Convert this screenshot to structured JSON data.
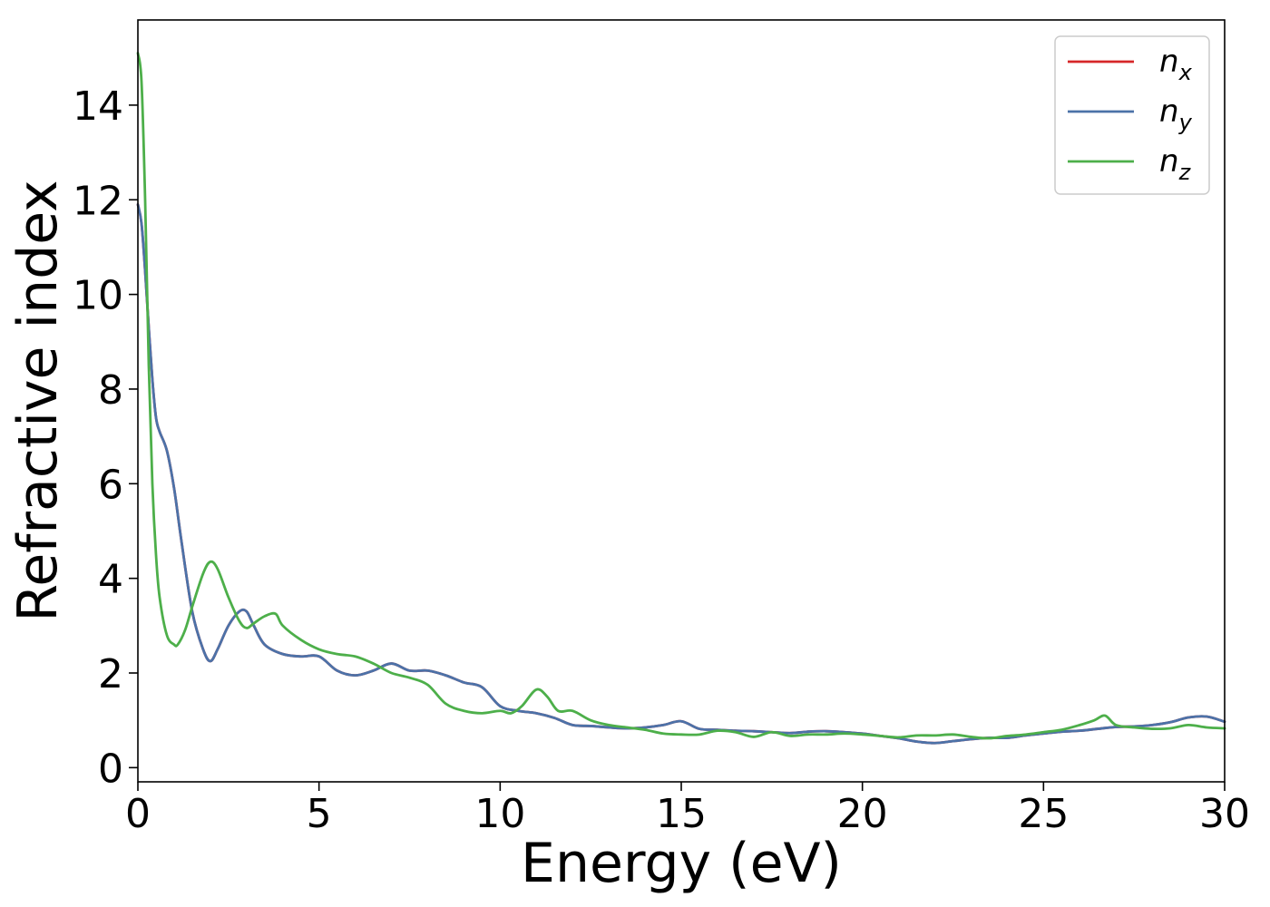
{
  "chart_data": {
    "type": "line",
    "title": "",
    "xlabel": "Energy (eV)",
    "ylabel": "Refractive index",
    "xlim": [
      0,
      30
    ],
    "ylim": [
      -0.3,
      15.8
    ],
    "xticks": [
      0,
      5,
      10,
      15,
      20,
      25,
      30
    ],
    "yticks": [
      0,
      2,
      4,
      6,
      8,
      10,
      12,
      14
    ],
    "grid": false,
    "legend_position": "top-right",
    "series": [
      {
        "name": "n",
        "subscript": "x",
        "color": "#d62728",
        "x": [
          0,
          0.1,
          0.2,
          0.3,
          0.4,
          0.5,
          0.6,
          0.8,
          1.0,
          1.2,
          1.5,
          1.8,
          2.0,
          2.2,
          2.5,
          2.8,
          3.0,
          3.2,
          3.5,
          4.0,
          4.5,
          5.0,
          5.5,
          6.0,
          6.5,
          7.0,
          7.5,
          8.0,
          8.5,
          9.0,
          9.5,
          10.0,
          10.5,
          11.0,
          11.5,
          12.0,
          12.5,
          13.0,
          13.5,
          14.0,
          14.5,
          15.0,
          15.5,
          16.0,
          16.5,
          17.0,
          17.5,
          18.0,
          18.5,
          19.0,
          19.5,
          20.0,
          20.5,
          21.0,
          21.5,
          22.0,
          22.5,
          23.0,
          23.5,
          24.0,
          24.5,
          25.0,
          25.5,
          26.0,
          26.5,
          27.0,
          27.5,
          28.0,
          28.5,
          29.0,
          29.5,
          30.0
        ],
        "values": [
          11.9,
          11.5,
          10.5,
          9.3,
          8.2,
          7.4,
          7.1,
          6.7,
          5.9,
          4.8,
          3.3,
          2.5,
          2.25,
          2.5,
          3.0,
          3.3,
          3.3,
          3.0,
          2.6,
          2.4,
          2.35,
          2.35,
          2.05,
          1.95,
          2.05,
          2.2,
          2.05,
          2.05,
          1.95,
          1.8,
          1.7,
          1.3,
          1.2,
          1.15,
          1.05,
          0.9,
          0.88,
          0.85,
          0.83,
          0.85,
          0.9,
          0.98,
          0.82,
          0.8,
          0.78,
          0.77,
          0.75,
          0.73,
          0.76,
          0.77,
          0.75,
          0.72,
          0.67,
          0.62,
          0.55,
          0.52,
          0.56,
          0.6,
          0.63,
          0.63,
          0.68,
          0.72,
          0.76,
          0.78,
          0.82,
          0.86,
          0.87,
          0.9,
          0.96,
          1.06,
          1.08,
          0.97
        ]
      },
      {
        "name": "n",
        "subscript": "y",
        "color": "#4c72a8",
        "x": [
          0,
          0.1,
          0.2,
          0.3,
          0.4,
          0.5,
          0.6,
          0.8,
          1.0,
          1.2,
          1.5,
          1.8,
          2.0,
          2.2,
          2.5,
          2.8,
          3.0,
          3.2,
          3.5,
          4.0,
          4.5,
          5.0,
          5.5,
          6.0,
          6.5,
          7.0,
          7.5,
          8.0,
          8.5,
          9.0,
          9.5,
          10.0,
          10.5,
          11.0,
          11.5,
          12.0,
          12.5,
          13.0,
          13.5,
          14.0,
          14.5,
          15.0,
          15.5,
          16.0,
          16.5,
          17.0,
          17.5,
          18.0,
          18.5,
          19.0,
          19.5,
          20.0,
          20.5,
          21.0,
          21.5,
          22.0,
          22.5,
          23.0,
          23.5,
          24.0,
          24.5,
          25.0,
          25.5,
          26.0,
          26.5,
          27.0,
          27.5,
          28.0,
          28.5,
          29.0,
          29.5,
          30.0
        ],
        "values": [
          11.9,
          11.5,
          10.5,
          9.3,
          8.2,
          7.4,
          7.1,
          6.7,
          5.9,
          4.8,
          3.3,
          2.5,
          2.25,
          2.5,
          3.0,
          3.3,
          3.3,
          3.0,
          2.6,
          2.4,
          2.35,
          2.35,
          2.05,
          1.95,
          2.05,
          2.2,
          2.05,
          2.05,
          1.95,
          1.8,
          1.7,
          1.3,
          1.2,
          1.15,
          1.05,
          0.9,
          0.88,
          0.85,
          0.83,
          0.85,
          0.9,
          0.98,
          0.82,
          0.8,
          0.78,
          0.77,
          0.75,
          0.73,
          0.76,
          0.77,
          0.75,
          0.72,
          0.67,
          0.62,
          0.55,
          0.52,
          0.56,
          0.6,
          0.63,
          0.63,
          0.68,
          0.72,
          0.76,
          0.78,
          0.82,
          0.86,
          0.87,
          0.9,
          0.96,
          1.06,
          1.08,
          0.97
        ]
      },
      {
        "name": "n",
        "subscript": "z",
        "color": "#4daf4a",
        "x": [
          0,
          0.1,
          0.2,
          0.3,
          0.4,
          0.5,
          0.6,
          0.8,
          1.0,
          1.1,
          1.3,
          1.5,
          1.8,
          2.0,
          2.2,
          2.5,
          2.8,
          3.0,
          3.2,
          3.5,
          3.8,
          4.0,
          4.5,
          5.0,
          5.5,
          6.0,
          6.5,
          7.0,
          7.5,
          8.0,
          8.5,
          9.0,
          9.5,
          10.0,
          10.3,
          10.6,
          11.0,
          11.3,
          11.6,
          12.0,
          12.5,
          13.0,
          13.5,
          14.0,
          14.5,
          15.0,
          15.5,
          16.0,
          16.5,
          17.0,
          17.5,
          18.0,
          18.5,
          19.0,
          19.5,
          20.0,
          20.5,
          21.0,
          21.5,
          22.0,
          22.5,
          23.0,
          23.5,
          24.0,
          24.5,
          25.0,
          25.5,
          26.0,
          26.4,
          26.7,
          27.0,
          27.5,
          28.0,
          28.5,
          29.0,
          29.5,
          30.0
        ],
        "values": [
          15.1,
          14.5,
          12.0,
          8.5,
          6.0,
          4.5,
          3.6,
          2.8,
          2.6,
          2.6,
          2.9,
          3.4,
          4.1,
          4.35,
          4.2,
          3.6,
          3.1,
          2.95,
          3.05,
          3.2,
          3.25,
          3.0,
          2.7,
          2.5,
          2.4,
          2.35,
          2.2,
          2.0,
          1.9,
          1.75,
          1.35,
          1.2,
          1.15,
          1.2,
          1.15,
          1.3,
          1.65,
          1.5,
          1.2,
          1.2,
          1.0,
          0.9,
          0.85,
          0.8,
          0.72,
          0.7,
          0.7,
          0.78,
          0.75,
          0.65,
          0.75,
          0.67,
          0.7,
          0.7,
          0.72,
          0.7,
          0.67,
          0.64,
          0.68,
          0.68,
          0.7,
          0.65,
          0.62,
          0.67,
          0.7,
          0.75,
          0.8,
          0.9,
          1.0,
          1.1,
          0.9,
          0.85,
          0.82,
          0.83,
          0.9,
          0.85,
          0.83
        ]
      }
    ]
  }
}
